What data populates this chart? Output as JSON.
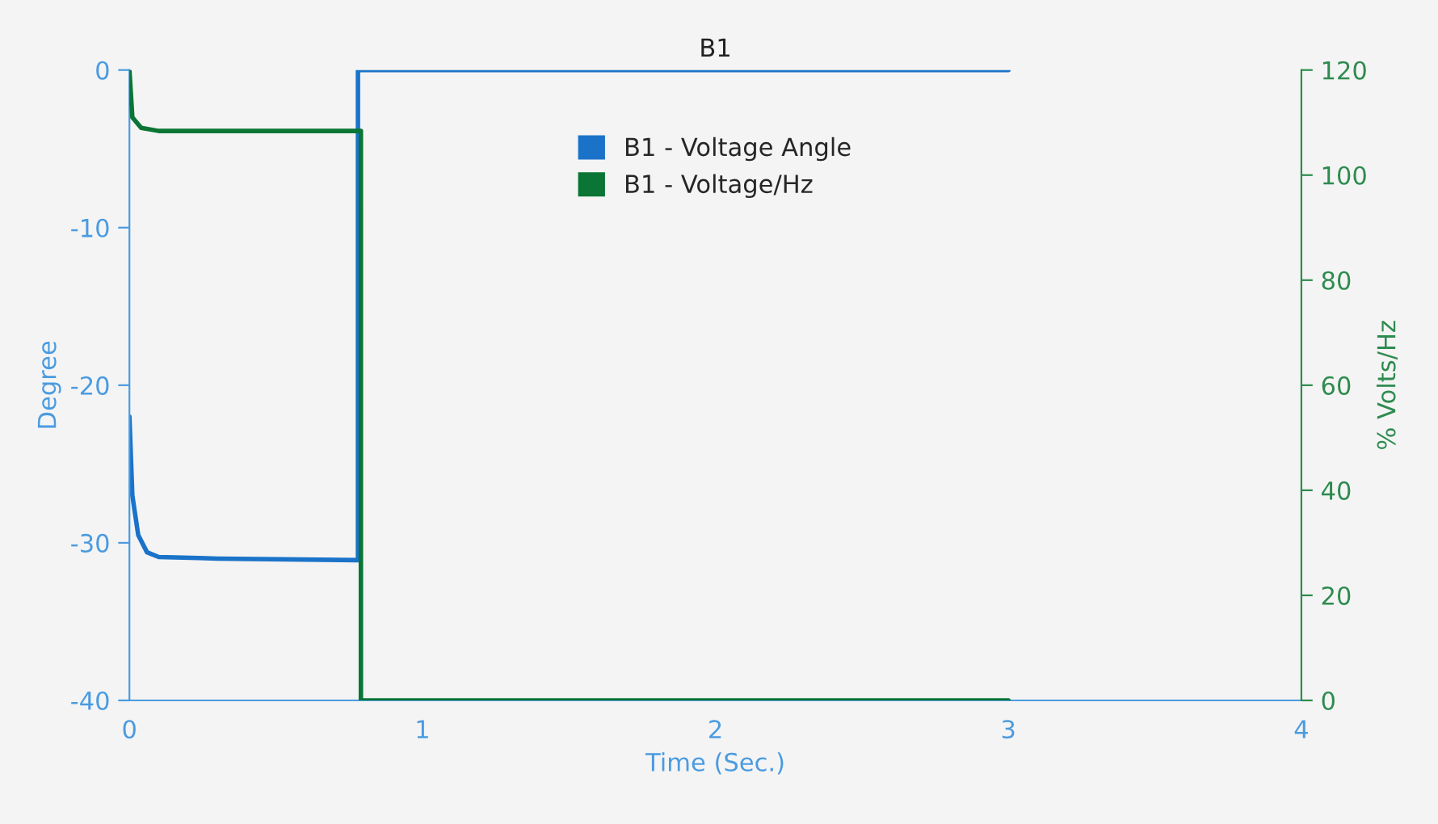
{
  "chart_data": {
    "type": "line",
    "title": "B1",
    "xlabel": "Time (Sec.)",
    "ylabel": "Degree",
    "y2label": "% Volts/Hz",
    "xlim": [
      0,
      4
    ],
    "xticks": [
      0,
      1,
      2,
      3,
      4
    ],
    "ylim": [
      -40,
      0
    ],
    "yticks": [
      -40,
      -30,
      -20,
      -10,
      0
    ],
    "y2lim": [
      0,
      120
    ],
    "y2ticks": [
      0,
      20,
      40,
      60,
      80,
      100,
      120
    ],
    "grid": false,
    "legend": "top",
    "marker": "none",
    "line_style": "solid",
    "series": [
      {
        "name": "B1 - Voltage Angle",
        "color": "#1a73c9",
        "x": [
          0,
          0.01,
          0.03,
          0.06,
          0.1,
          0.3,
          0.78,
          0.78,
          3
        ],
        "values": [
          -22,
          -27,
          -29.5,
          -30.6,
          -30.9,
          -31,
          -31.1,
          0,
          0
        ]
      },
      {
        "name": "B1 - Voltage/Hz",
        "color": "#0a7534",
        "axis": "y2",
        "x": [
          0,
          0.01,
          0.04,
          0.1,
          0.79,
          0.79,
          3
        ],
        "values": [
          120,
          111,
          109,
          108.4,
          108.4,
          0,
          0
        ]
      }
    ]
  }
}
